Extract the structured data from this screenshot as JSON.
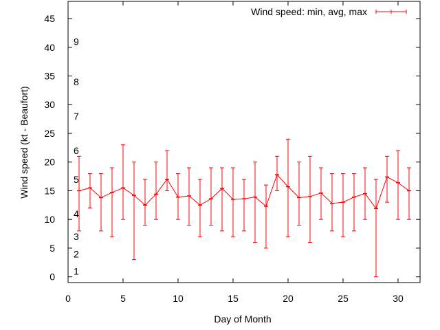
{
  "chart_data": {
    "type": "line",
    "title": "",
    "xlabel": "Day of Month",
    "ylabel": "Wind speed (kt - Beaufort)",
    "xlim": [
      0,
      32
    ],
    "ylim": [
      -1,
      48
    ],
    "xticks": [
      0,
      5,
      10,
      15,
      20,
      25,
      30
    ],
    "yticks": [
      0,
      5,
      10,
      15,
      20,
      25,
      30,
      35,
      40,
      45
    ],
    "grid": false,
    "legend": {
      "label": "Wind speed: min, avg, max",
      "placement": "top-right"
    },
    "series_color": "#ff0000",
    "beaufort_labels": [
      {
        "label": "1",
        "kt": 1
      },
      {
        "label": "2",
        "kt": 4
      },
      {
        "label": "3",
        "kt": 7
      },
      {
        "label": "4",
        "kt": 11
      },
      {
        "label": "5",
        "kt": 17
      },
      {
        "label": "6",
        "kt": 22
      },
      {
        "label": "7",
        "kt": 28
      },
      {
        "label": "8",
        "kt": 34
      },
      {
        "label": "9",
        "kt": 41
      }
    ],
    "series": [
      {
        "name": "Wind speed: min, avg, max",
        "x": [
          1,
          2,
          3,
          4,
          5,
          6,
          7,
          8,
          9,
          10,
          11,
          12,
          13,
          14,
          15,
          16,
          17,
          18,
          19,
          20,
          21,
          22,
          23,
          24,
          25,
          26,
          27,
          28,
          29,
          30,
          31
        ],
        "avg": [
          15,
          15.5,
          13.8,
          14.7,
          15.5,
          14.2,
          12.5,
          14.4,
          17,
          13.9,
          14.1,
          12.5,
          13.6,
          15.4,
          13.5,
          13.6,
          13.9,
          12.3,
          17.8,
          15.7,
          13.8,
          14,
          14.6,
          12.8,
          13,
          13.9,
          14.5,
          11.9,
          17.4,
          16.4,
          15
        ],
        "min": [
          8,
          12,
          8,
          7,
          10,
          3,
          9,
          10,
          15,
          10,
          9,
          7,
          9,
          8,
          7,
          8,
          6,
          5,
          15,
          7,
          9,
          6,
          10,
          8,
          7,
          8,
          10,
          0,
          13,
          10,
          10
        ],
        "max": [
          21,
          18,
          18,
          19,
          23,
          20,
          17,
          20,
          22,
          18,
          19,
          17,
          19,
          19,
          19,
          17,
          20,
          16,
          21,
          24,
          20,
          21,
          19,
          18,
          18,
          18,
          19,
          17,
          21,
          22,
          19
        ]
      }
    ]
  }
}
